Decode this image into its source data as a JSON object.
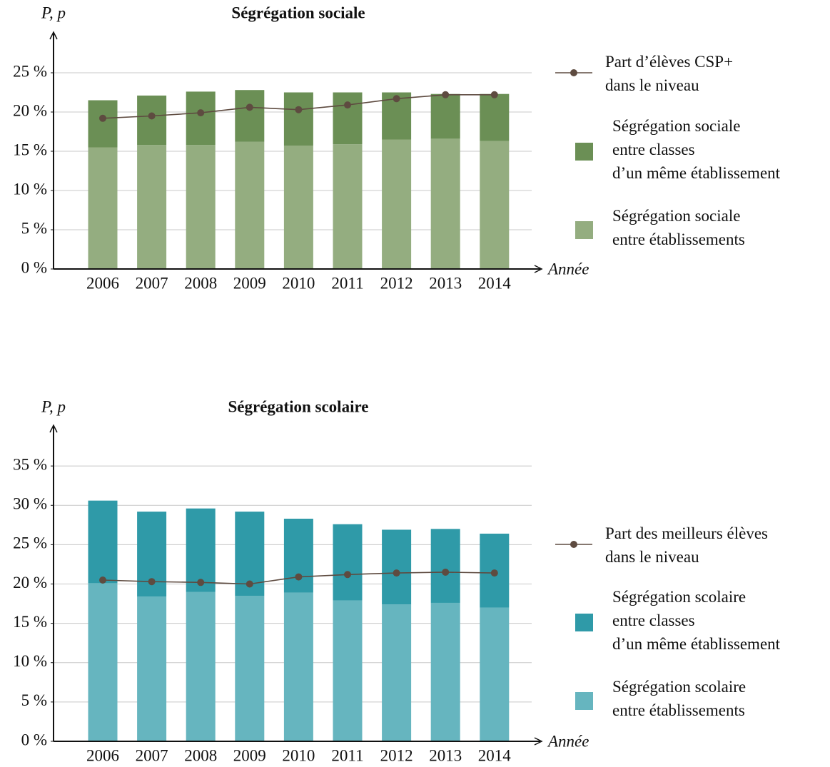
{
  "chart_data": [
    {
      "type": "bar",
      "stacked": true,
      "title": "Ségrégation sociale",
      "x_label": "Année",
      "y_label": "P, p",
      "categories": [
        "2006",
        "2007",
        "2008",
        "2009",
        "2010",
        "2011",
        "2012",
        "2013",
        "2014"
      ],
      "series": [
        {
          "name": "Part d’élèves CSP+\ndans le niveau",
          "type": "line",
          "color": "#5e4b40",
          "values": [
            19.2,
            19.5,
            19.9,
            20.6,
            20.3,
            20.9,
            21.7,
            22.2,
            22.2
          ]
        },
        {
          "name": "Ségrégation sociale\nentre classes\nd’un même établissement",
          "type": "bar",
          "color": "#6b8f55",
          "values": [
            6.0,
            6.3,
            6.8,
            6.6,
            6.8,
            6.6,
            6.0,
            5.7,
            6.0
          ]
        },
        {
          "name": "Ségrégation sociale\nentre établissements",
          "type": "bar",
          "color": "#94ad80",
          "values": [
            15.5,
            15.8,
            15.8,
            16.2,
            15.7,
            15.9,
            16.5,
            16.6,
            16.3
          ]
        }
      ],
      "ylim": [
        0,
        30
      ],
      "yticks": [
        {
          "value": 0,
          "label": "0 %"
        },
        {
          "value": 5,
          "label": "5 %"
        },
        {
          "value": 10,
          "label": "10 %"
        },
        {
          "value": 15,
          "label": "15 %"
        },
        {
          "value": 20,
          "label": "20 %"
        },
        {
          "value": 25,
          "label": "25 %"
        }
      ],
      "grid": true
    },
    {
      "type": "bar",
      "stacked": true,
      "title": "Ségrégation scolaire",
      "x_label": "Année",
      "y_label": "P, p",
      "categories": [
        "2006",
        "2007",
        "2008",
        "2009",
        "2010",
        "2011",
        "2012",
        "2013",
        "2014"
      ],
      "series": [
        {
          "name": "Part des meilleurs élèves\ndans le niveau",
          "type": "line",
          "color": "#5e4b40",
          "values": [
            20.5,
            20.3,
            20.2,
            20.0,
            20.9,
            21.2,
            21.4,
            21.5,
            21.4
          ]
        },
        {
          "name": "Ségrégation scolaire\nentre classes\nd’un même établissement",
          "type": "bar",
          "color": "#2f9aa8",
          "values": [
            10.5,
            10.8,
            10.6,
            10.7,
            9.4,
            9.7,
            9.5,
            9.4,
            9.4
          ]
        },
        {
          "name": "Ségrégation scolaire\nentre établissements",
          "type": "bar",
          "color": "#66b5bf",
          "values": [
            20.1,
            18.4,
            19.0,
            18.5,
            18.9,
            17.9,
            17.4,
            17.6,
            17.0
          ]
        }
      ],
      "ylim": [
        0,
        40
      ],
      "yticks": [
        {
          "value": 0,
          "label": "0 %"
        },
        {
          "value": 5,
          "label": "5 %"
        },
        {
          "value": 10,
          "label": "10 %"
        },
        {
          "value": 15,
          "label": "15 %"
        },
        {
          "value": 20,
          "label": "20 %"
        },
        {
          "value": 25,
          "label": "25 %"
        },
        {
          "value": 30,
          "label": "30 %"
        },
        {
          "value": 35,
          "label": "35 %"
        }
      ],
      "grid": true
    }
  ]
}
